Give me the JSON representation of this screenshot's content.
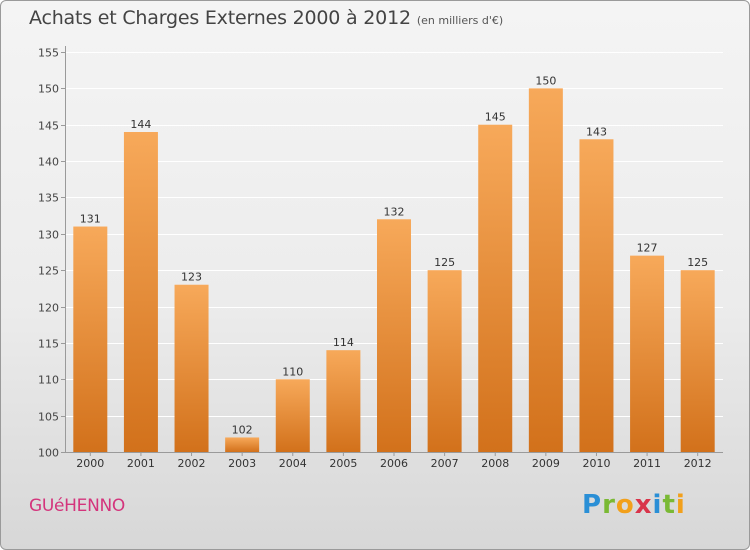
{
  "header": {
    "title": "Achats et Charges Externes 2000 à 2012",
    "subtitle": "(en milliers d'€)"
  },
  "footer": {
    "commune": "GUéHENNO",
    "logo_text": "Proxiti",
    "logo_colors": [
      "#2a8fd6",
      "#7ab934",
      "#f2a01b",
      "#d9344a",
      "#2a8fd6",
      "#7ab934",
      "#f2a01b"
    ]
  },
  "colors": {
    "bar_top": "#f7a95a",
    "bar_bottom": "#d2711b",
    "grid": "#ffffff",
    "axis": "#9a9a9a",
    "commune": "#d4347c"
  },
  "chart_data": {
    "type": "bar",
    "title": "Achats et Charges Externes 2000 à 2012",
    "subtitle": "(en milliers d'€)",
    "categories": [
      "2000",
      "2001",
      "2002",
      "2003",
      "2004",
      "2005",
      "2006",
      "2007",
      "2008",
      "2009",
      "2010",
      "2011",
      "2012"
    ],
    "values": [
      131,
      144,
      123,
      102,
      110,
      114,
      132,
      125,
      145,
      150,
      143,
      127,
      125
    ],
    "ylim": [
      100,
      155
    ],
    "yticks": [
      100,
      105,
      110,
      115,
      120,
      125,
      130,
      135,
      140,
      145,
      150,
      155
    ],
    "grid": true,
    "data_labels": true
  }
}
